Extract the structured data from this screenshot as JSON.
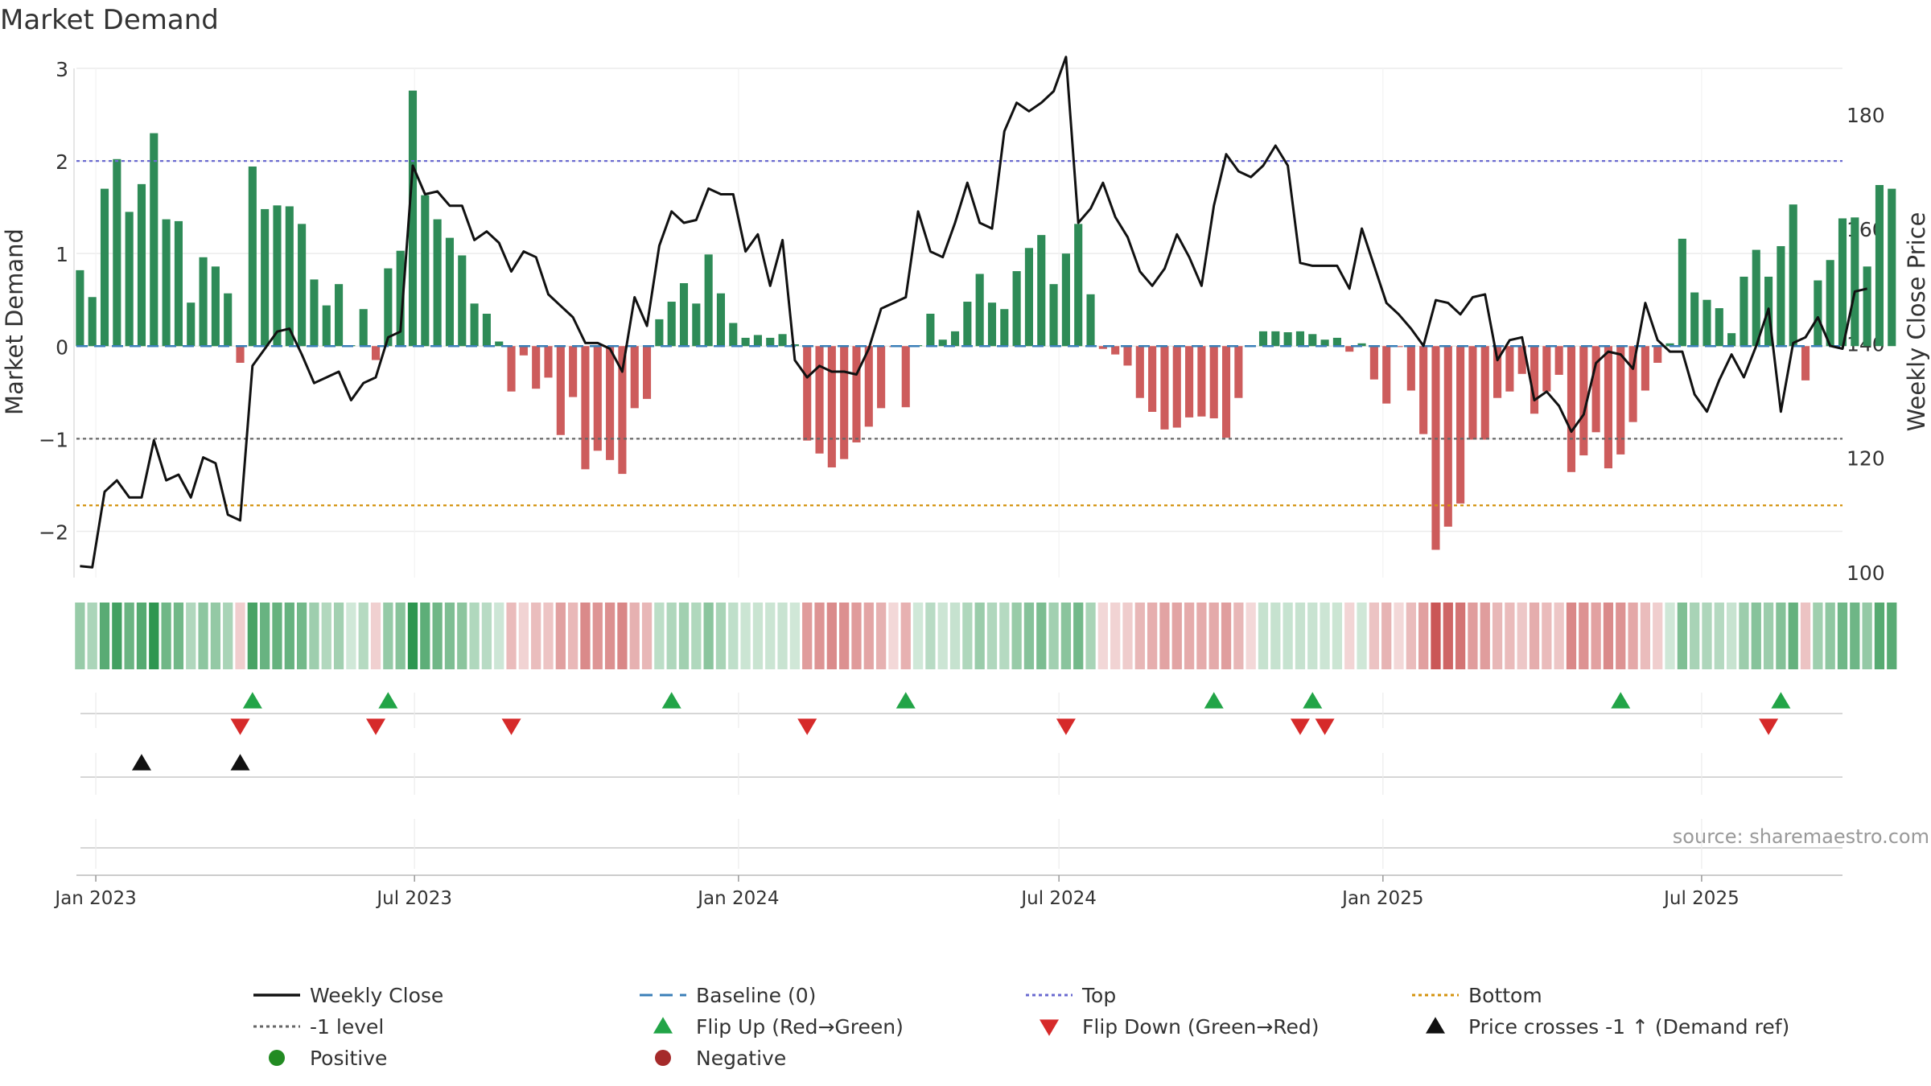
{
  "chart_data": {
    "type": "bar",
    "title": "Market Demand",
    "ylabel": "Market Demand",
    "ylabel_right": "Weekly Close Price",
    "ylim": [
      -2.5,
      3.0
    ],
    "ylim_right": [
      99,
      188
    ],
    "yticks": [
      {
        "v": 3,
        "label": "3"
      },
      {
        "v": 2,
        "label": "2"
      },
      {
        "v": 1,
        "label": "1"
      },
      {
        "v": 0,
        "label": "0"
      },
      {
        "v": -1,
        "label": "−1"
      },
      {
        "v": -2,
        "label": "−2"
      }
    ],
    "yticks_right": [
      {
        "v": 180,
        "label": "180"
      },
      {
        "v": 160,
        "label": "160"
      },
      {
        "v": 140,
        "label": "140"
      },
      {
        "v": 120,
        "label": "120"
      },
      {
        "v": 100,
        "label": "100"
      }
    ],
    "x_start": "2022-12-21",
    "x_end": "2025-09-19",
    "week_start": "2022-12-23",
    "xticks": [
      {
        "date": "2023-01-01",
        "label": "Jan 2023"
      },
      {
        "date": "2023-07-01",
        "label": "Jul 2023"
      },
      {
        "date": "2024-01-01",
        "label": "Jan 2024"
      },
      {
        "date": "2024-07-01",
        "label": "Jul 2024"
      },
      {
        "date": "2025-01-01",
        "label": "Jan 2025"
      },
      {
        "date": "2025-07-01",
        "label": "Jul 2025"
      }
    ],
    "series": [
      {
        "name": "Market Demand",
        "values": [
          0.82,
          0.53,
          1.7,
          2.02,
          1.45,
          1.75,
          2.3,
          1.37,
          1.35,
          0.47,
          0.96,
          0.86,
          0.57,
          -0.18,
          1.94,
          1.48,
          1.52,
          1.51,
          1.32,
          0.72,
          0.44,
          0.67,
          0.01,
          0.4,
          -0.15,
          0.84,
          1.03,
          2.76,
          1.63,
          1.37,
          1.17,
          0.98,
          0.46,
          0.35,
          0.05,
          -0.49,
          -0.1,
          -0.46,
          -0.34,
          -0.96,
          -0.55,
          -1.33,
          -1.13,
          -1.23,
          -1.38,
          -0.67,
          -0.57,
          0.29,
          0.48,
          0.68,
          0.46,
          0.99,
          0.57,
          0.25,
          0.09,
          0.12,
          0.09,
          0.13,
          0.02,
          -1.02,
          -1.16,
          -1.31,
          -1.22,
          -1.04,
          -0.87,
          -0.67,
          -0.01,
          -0.66,
          0.01,
          0.35,
          0.07,
          0.16,
          0.48,
          0.78,
          0.47,
          0.4,
          0.81,
          1.06,
          1.2,
          0.67,
          1.0,
          1.32,
          0.56,
          -0.03,
          -0.09,
          -0.21,
          -0.56,
          -0.71,
          -0.9,
          -0.88,
          -0.77,
          -0.76,
          -0.78,
          -0.99,
          -0.56,
          -0.01,
          0.16,
          0.16,
          0.15,
          0.16,
          0.13,
          0.07,
          0.09,
          -0.06,
          0.03,
          -0.36,
          -0.62,
          -0.01,
          -0.48,
          -0.95,
          -2.2,
          -1.95,
          -1.7,
          -1.01,
          -1.01,
          -0.56,
          -0.49,
          -0.3,
          -0.73,
          -0.49,
          -0.31,
          -1.36,
          -1.18,
          -0.93,
          -1.32,
          -1.17,
          -0.82,
          -0.48,
          -0.18,
          0.03,
          1.16,
          0.58,
          0.5,
          0.41,
          0.14,
          0.75,
          1.04,
          0.75,
          1.08,
          1.53,
          -0.37,
          0.71,
          0.93,
          1.38,
          1.39,
          0.86,
          1.74,
          1.7
        ]
      },
      {
        "name": "Weekly Close",
        "values": [
          101,
          100.8,
          114,
          116,
          113,
          113,
          123,
          116,
          117,
          113,
          120,
          119,
          110,
          109,
          136,
          139,
          142,
          142.5,
          138,
          133,
          134,
          135,
          130,
          133,
          134,
          141,
          142,
          171,
          166,
          166.5,
          164,
          164,
          158,
          159.5,
          157.5,
          152.5,
          156,
          155,
          148.5,
          146.5,
          144.5,
          140,
          140,
          139,
          135,
          148,
          143,
          157,
          163,
          161,
          161.5,
          167,
          166,
          166,
          156,
          159,
          150,
          158,
          137,
          134,
          136,
          135,
          135,
          134.5,
          139,
          146,
          147,
          148,
          163,
          156,
          155,
          161,
          168,
          161,
          160,
          177,
          182,
          180.5,
          182,
          184,
          190,
          161,
          163.5,
          168,
          162,
          158.5,
          152.5,
          150,
          153,
          159,
          155,
          150,
          164,
          173,
          170,
          169,
          171,
          174.5,
          171,
          154,
          153.5,
          153.5,
          153.5,
          149.5,
          160,
          153.5,
          147,
          145,
          142.5,
          139.5,
          147.5,
          147,
          145,
          148,
          148.5,
          137,
          140.5,
          141,
          130,
          131.5,
          129,
          124.5,
          127.5,
          136.5,
          138.5,
          138,
          135.5,
          147,
          140.5,
          138.5,
          138.5,
          131,
          128,
          133.5,
          138,
          134,
          139.5,
          146,
          128,
          140,
          141,
          144.5,
          139.5,
          139,
          149,
          149.5
        ]
      }
    ],
    "reference_lines": [
      {
        "name": "Top",
        "value": 2,
        "color": "#6a6ad0"
      },
      {
        "name": "-1 level",
        "value": -1,
        "color": "#666666"
      },
      {
        "name": "Bottom",
        "value": -1.72,
        "color": "#d4930f"
      },
      {
        "name": "Baseline (0)",
        "value": 0,
        "color": "#3b7fb8"
      }
    ],
    "flip_up_weeks": [
      14,
      25,
      48,
      67,
      92,
      100,
      125,
      138
    ],
    "flip_down_weeks": [
      13,
      24,
      35,
      59,
      80,
      99,
      101,
      137
    ],
    "price_cross_weeks": [
      5,
      13
    ],
    "colors": {
      "positive": "#2e8b57",
      "negative": "#cd5c5c",
      "price": "#111111",
      "flip_up": "#22a447",
      "flip_down": "#d62a2a"
    },
    "source": "source: sharemaestro.com",
    "legend": [
      {
        "label": "Weekly Close",
        "kind": "line",
        "color": "#111111",
        "dash": "solid"
      },
      {
        "label": "Baseline (0)",
        "kind": "line",
        "color": "#3b7fb8",
        "dash": "dash"
      },
      {
        "label": "Top",
        "kind": "line",
        "color": "#6a6ad0",
        "dash": "dot"
      },
      {
        "label": "Bottom",
        "kind": "line",
        "color": "#d4930f",
        "dash": "dot"
      },
      {
        "label": "-1 level",
        "kind": "line",
        "color": "#666666",
        "dash": "dot"
      },
      {
        "label": "Flip Up (Red→Green)",
        "kind": "tri-up",
        "color": "#22a447"
      },
      {
        "label": "Flip Down (Green→Red)",
        "kind": "tri-down",
        "color": "#d62a2a"
      },
      {
        "label": "Price crosses -1 ↑ (Demand ref)",
        "kind": "tri-up",
        "color": "#111111"
      },
      {
        "label": "Positive",
        "kind": "dot",
        "color": "#228b22"
      },
      {
        "label": "Negative",
        "kind": "dot",
        "color": "#a52a2a"
      }
    ]
  }
}
